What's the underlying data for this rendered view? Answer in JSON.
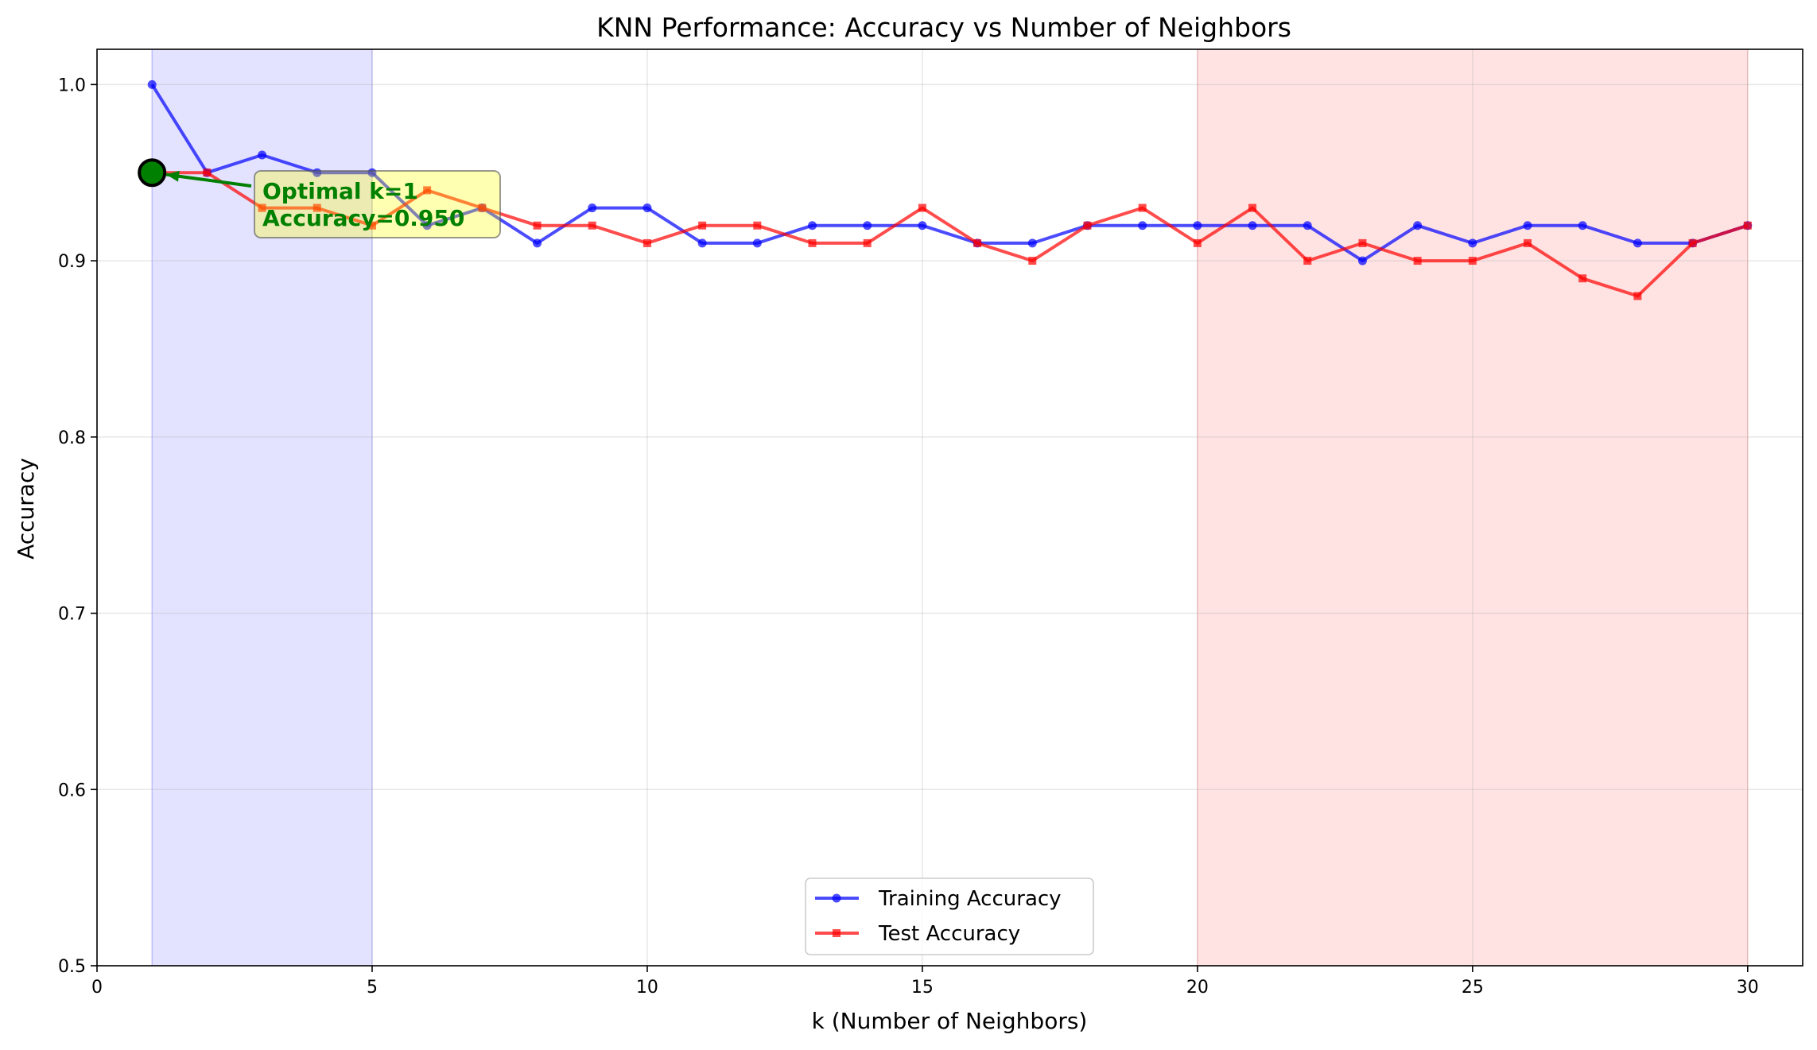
{
  "chart_data": {
    "type": "line",
    "title": "KNN Performance: Accuracy vs Number of Neighbors",
    "xlabel": "k (Number of Neighbors)",
    "ylabel": "Accuracy",
    "xlim": [
      0,
      31
    ],
    "ylim": [
      0.5,
      1.02
    ],
    "xticks": [
      0,
      5,
      10,
      15,
      20,
      25,
      30
    ],
    "yticks": [
      0.5,
      0.6,
      0.7,
      0.8,
      0.9,
      1.0
    ],
    "xtick_labels": [
      "0",
      "5",
      "10",
      "15",
      "20",
      "25",
      "30"
    ],
    "ytick_labels": [
      "0.5",
      "0.6",
      "0.7",
      "0.8",
      "0.9",
      "1.0"
    ],
    "grid": true,
    "legend_position": "bottom-center",
    "x": [
      1,
      2,
      3,
      4,
      5,
      6,
      7,
      8,
      9,
      10,
      11,
      12,
      13,
      14,
      15,
      16,
      17,
      18,
      19,
      20,
      21,
      22,
      23,
      24,
      25,
      26,
      27,
      28,
      29,
      30
    ],
    "series": [
      {
        "name": "Training Accuracy",
        "color": "#0000ff",
        "marker": "circle",
        "values": [
          1.0,
          0.95,
          0.96,
          0.95,
          0.95,
          0.92,
          0.93,
          0.91,
          0.93,
          0.93,
          0.91,
          0.91,
          0.92,
          0.92,
          0.92,
          0.91,
          0.91,
          0.92,
          0.92,
          0.92,
          0.92,
          0.92,
          0.9,
          0.92,
          0.91,
          0.92,
          0.92,
          0.91,
          0.91,
          0.92
        ]
      },
      {
        "name": "Test Accuracy",
        "color": "#ff0000",
        "marker": "square",
        "values": [
          0.95,
          0.95,
          0.93,
          0.93,
          0.92,
          0.94,
          0.93,
          0.92,
          0.92,
          0.91,
          0.92,
          0.92,
          0.91,
          0.91,
          0.93,
          0.91,
          0.9,
          0.92,
          0.93,
          0.91,
          0.93,
          0.9,
          0.91,
          0.9,
          0.9,
          0.91,
          0.89,
          0.88,
          0.91,
          0.92
        ]
      }
    ],
    "shaded_regions": [
      {
        "x_start": 1,
        "x_end": 5,
        "color": "#0000ff"
      },
      {
        "x_start": 20,
        "x_end": 30,
        "color": "#ff0000"
      }
    ],
    "highlight_point": {
      "x": 1,
      "y": 0.95,
      "color": "#008000"
    },
    "annotation": {
      "lines": [
        "Optimal k=1",
        "Accuracy=0.950"
      ],
      "text_color": "#008000",
      "box_color": "#ffff00",
      "arrow_color": "#008000"
    }
  }
}
